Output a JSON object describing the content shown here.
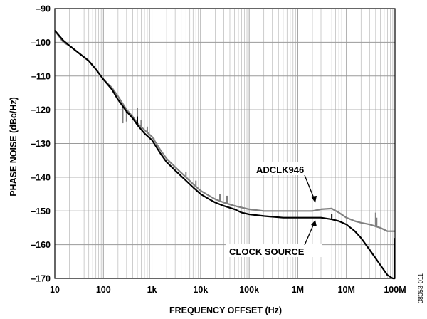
{
  "chart_data": {
    "type": "line",
    "title": "",
    "xlabel": "FREQUENCY OFFSET (Hz)",
    "ylabel": "PHASE NOISE (dBc/Hz)",
    "x_scale": "log",
    "xlim": [
      10,
      100000000
    ],
    "ylim": [
      -170,
      -90
    ],
    "x_ticks": [
      {
        "value": 10,
        "label": "10"
      },
      {
        "value": 100,
        "label": "100"
      },
      {
        "value": 1000,
        "label": "1k"
      },
      {
        "value": 10000,
        "label": "10k"
      },
      {
        "value": 100000,
        "label": "100k"
      },
      {
        "value": 1000000,
        "label": "1M"
      },
      {
        "value": 10000000,
        "label": "10M"
      },
      {
        "value": 100000000,
        "label": "100M"
      }
    ],
    "y_ticks": [
      {
        "value": -90,
        "label": "–90"
      },
      {
        "value": -100,
        "label": "–100"
      },
      {
        "value": -110,
        "label": "–110"
      },
      {
        "value": -120,
        "label": "–120"
      },
      {
        "value": -130,
        "label": "–130"
      },
      {
        "value": -140,
        "label": "–140"
      },
      {
        "value": -150,
        "label": "–150"
      },
      {
        "value": -160,
        "label": "–160"
      },
      {
        "value": -170,
        "label": "–170"
      }
    ],
    "grid": true,
    "series": [
      {
        "name": "ADCLK946",
        "color": "#808080",
        "points": [
          [
            10,
            -96.5
          ],
          [
            15,
            -100
          ],
          [
            20,
            -101
          ],
          [
            30,
            -103
          ],
          [
            50,
            -105.5
          ],
          [
            70,
            -108
          ],
          [
            100,
            -111
          ],
          [
            150,
            -113.5
          ],
          [
            200,
            -116
          ],
          [
            300,
            -120
          ],
          [
            400,
            -122
          ],
          [
            500,
            -124
          ],
          [
            700,
            -126
          ],
          [
            1000,
            -128
          ],
          [
            1500,
            -132
          ],
          [
            2000,
            -134.5
          ],
          [
            3000,
            -137
          ],
          [
            5000,
            -140
          ],
          [
            7000,
            -142
          ],
          [
            10000,
            -144
          ],
          [
            15000,
            -145.5
          ],
          [
            20000,
            -146.5
          ],
          [
            30000,
            -147.5
          ],
          [
            50000,
            -148.5
          ],
          [
            70000,
            -149
          ],
          [
            100000,
            -149.5
          ],
          [
            200000,
            -150
          ],
          [
            500000,
            -150
          ],
          [
            1000000,
            -150
          ],
          [
            2000000,
            -150
          ],
          [
            3000000,
            -149.5
          ],
          [
            5000000,
            -149.3
          ],
          [
            7000000,
            -150.5
          ],
          [
            10000000,
            -152
          ],
          [
            15000000,
            -153
          ],
          [
            20000000,
            -153.5
          ],
          [
            30000000,
            -154
          ],
          [
            50000000,
            -155
          ],
          [
            70000000,
            -156
          ],
          [
            100000000,
            -156
          ]
        ],
        "spurs": [
          [
            250,
            -124
          ],
          [
            300,
            -123.5
          ],
          [
            400,
            -123
          ],
          [
            500,
            -119.5
          ],
          [
            600,
            -123
          ],
          [
            800,
            -125
          ],
          [
            1100,
            -128.5
          ],
          [
            5000,
            -138.5
          ],
          [
            8000,
            -141
          ],
          [
            25000,
            -145
          ],
          [
            35000,
            -145.5
          ],
          [
            40000000,
            -150.5
          ],
          [
            42000000,
            -152
          ]
        ]
      },
      {
        "name": "CLOCK SOURCE",
        "color": "#000000",
        "points": [
          [
            10,
            -96.5
          ],
          [
            15,
            -99.5
          ],
          [
            20,
            -101
          ],
          [
            30,
            -103
          ],
          [
            50,
            -105.5
          ],
          [
            70,
            -108
          ],
          [
            100,
            -111
          ],
          [
            150,
            -114
          ],
          [
            200,
            -117
          ],
          [
            300,
            -120.5
          ],
          [
            400,
            -122.5
          ],
          [
            500,
            -124.5
          ],
          [
            700,
            -127
          ],
          [
            1000,
            -129
          ],
          [
            1500,
            -133
          ],
          [
            2000,
            -135.5
          ],
          [
            3000,
            -138
          ],
          [
            5000,
            -141
          ],
          [
            7000,
            -143
          ],
          [
            10000,
            -145
          ],
          [
            15000,
            -146.5
          ],
          [
            20000,
            -147.5
          ],
          [
            30000,
            -148.5
          ],
          [
            50000,
            -149.5
          ],
          [
            70000,
            -150.5
          ],
          [
            100000,
            -151
          ],
          [
            200000,
            -151.5
          ],
          [
            500000,
            -152
          ],
          [
            1000000,
            -152
          ],
          [
            2000000,
            -152
          ],
          [
            3000000,
            -152
          ],
          [
            5000000,
            -152.5
          ],
          [
            7000000,
            -153
          ],
          [
            10000000,
            -154
          ],
          [
            15000000,
            -156
          ],
          [
            20000000,
            -158
          ],
          [
            30000000,
            -161.5
          ],
          [
            50000000,
            -166
          ],
          [
            70000000,
            -169
          ],
          [
            90000000,
            -170
          ],
          [
            100000000,
            -170
          ]
        ],
        "spurs": [
          [
            300,
            -121
          ],
          [
            500,
            -122
          ],
          [
            5000000,
            -151
          ]
        ]
      }
    ],
    "annotations": [
      {
        "text": "ADCLK946",
        "series": "ADCLK946",
        "arrow_to": [
          4000000,
          -149.5
        ]
      },
      {
        "text": "CLOCK SOURCE",
        "series": "CLOCK SOURCE",
        "arrow_to": [
          4000000,
          -152.5
        ]
      }
    ],
    "figure_id": "08053-011"
  }
}
